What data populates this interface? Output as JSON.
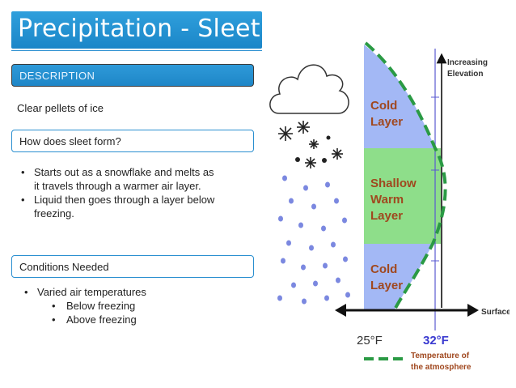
{
  "slide": {
    "title": "Precipitation - Sleet",
    "description_header": "DESCRIPTION",
    "description_text": "Clear pellets of ice",
    "how_header": "How does sleet form?",
    "how_bullets": [
      "Starts out as a snowflake and melts as",
      "it travels through a warmer air layer.",
      "Liquid then goes through a layer below",
      "freezing."
    ],
    "conditions_header": "Conditions Needed",
    "conditions_bullets": {
      "main": "Varied air temperatures",
      "sub1": "Below freezing",
      "sub2": "Above freezing"
    }
  },
  "diagram": {
    "layers": {
      "cold_top_line1": "Cold",
      "cold_top_line2": "Layer",
      "warm_line1": "Shallow",
      "warm_line2": "Warm",
      "warm_line3": "Layer",
      "cold_bottom_line1": "Cold",
      "cold_bottom_line2": "Layer"
    },
    "axis": {
      "elevation_line1": "Increasing",
      "elevation_line2": "Elevation",
      "surface": "Surface",
      "temp_25": "25°F",
      "temp_32": "32°F"
    },
    "legend": {
      "line1": "Temperature of",
      "line2": "the atmosphere"
    },
    "colors": {
      "cold_layer": "#a3b8f5",
      "warm_layer": "#8ede8a",
      "temperature_line": "#2a9a44",
      "label_text": "#a0481f",
      "header_blue": "#1b86c8"
    }
  }
}
